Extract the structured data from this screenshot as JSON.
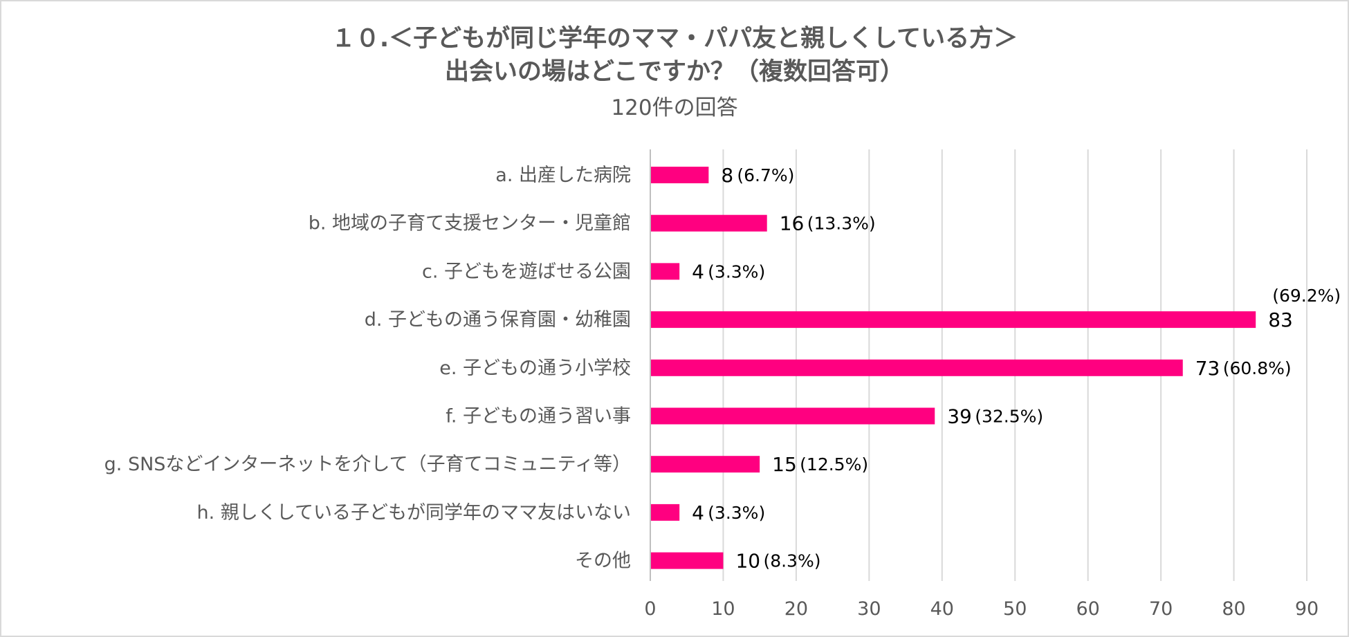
{
  "chart_data": {
    "type": "bar",
    "orientation": "horizontal",
    "title": [
      "１０.＜子どもが同じ学年のママ・パパ友と親しくしている方＞",
      "出会いの場はどこですか？（複数回答可）"
    ],
    "subtitle": "120件の回答",
    "categories": [
      "a. 出産した病院",
      "b. 地域の子育て支援センター・児童館",
      "c. 子どもを遊ばせる公園",
      "d. 子どもの通う保育園・幼稚園",
      "e. 子どもの通う小学校",
      "f.  子どもの通う習い事",
      "g. SNSなどインターネットを介して（子育てコミュニティ等）",
      "h. 親しくしている子どもが同学年のママ友はいない",
      "その他"
    ],
    "values": [
      8,
      16,
      4,
      83,
      73,
      39,
      15,
      4,
      10
    ],
    "percent_labels": [
      "(6.7%)",
      "(13.3%)",
      "(3.3%)",
      "(69.2%)",
      "(60.8%)",
      "(32.5%)",
      "(12.5%)",
      "(3.3%)",
      "(8.3%)"
    ],
    "x_ticks": [
      0,
      10,
      20,
      30,
      40,
      50,
      60,
      70,
      80,
      90
    ],
    "xlim": [
      0,
      90
    ],
    "grid": "vertical",
    "bar_color": "#FF0080",
    "grid_color": "#d9d9d9",
    "axis_color": "#bfbfbf",
    "text_color": "#595959"
  }
}
